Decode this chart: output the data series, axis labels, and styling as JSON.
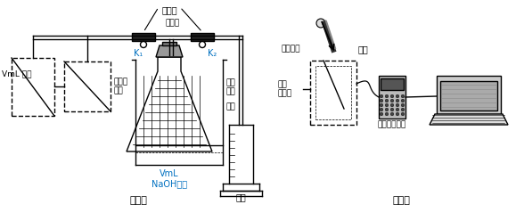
{
  "bg_color": "#ffffff",
  "line_color": "#000000",
  "blue_color": "#0070C0",
  "orange_color": "#FF8C00",
  "fig_width": 5.79,
  "fig_height": 2.48,
  "labels": {
    "spring_clamp": "弹簧夹",
    "burner": "燃烧匙",
    "k1": "K₁",
    "k2": "K₂",
    "vml_gas": "VmL 气体",
    "medical_bag": "医用输\n液袋",
    "excess_phosphorus": "过量\n白磷",
    "beaker": "烧杯",
    "vml_naoh": "VmL\nNaOH溶液",
    "graduated_cylinder": "量筒",
    "exp1": "实验一",
    "exhale": "呼出其他",
    "probe": "探头",
    "food_bag": "食品\n保鲜袋",
    "data_collector": "数据采集仪器",
    "exp2": "实验二"
  }
}
